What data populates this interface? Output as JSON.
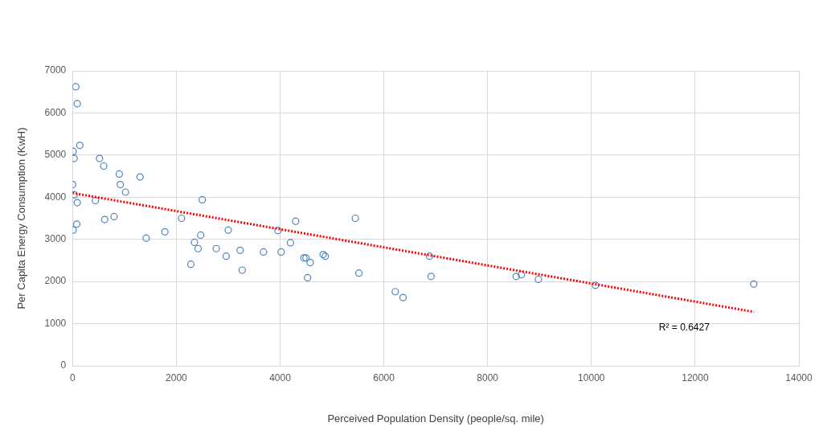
{
  "chart_data": {
    "type": "scatter",
    "x_label": "Perceived Population Density (people/sq. mile)",
    "y_label": "Per Capita Energy Consumption (KwH)",
    "annotation": "R² = 0.6427",
    "xlim": [
      0,
      14000
    ],
    "xticks": [
      0,
      2000,
      4000,
      6000,
      8000,
      10000,
      12000,
      14000
    ],
    "ylim": [
      0,
      7000
    ],
    "yticks": [
      0,
      1000,
      2000,
      3000,
      4000,
      5000,
      6000,
      7000
    ],
    "grid": true,
    "series": [
      {
        "type": "scatter",
        "marker": "circle",
        "color": "#4f81bd",
        "x": [
          62,
          90,
          140,
          10,
          30,
          520,
          600,
          900,
          1300,
          0,
          920,
          1020,
          30,
          440,
          90,
          2500,
          800,
          620,
          2100,
          80,
          10,
          1780,
          1420,
          2470,
          2350,
          2420,
          2770,
          3000,
          2960,
          3230,
          2280,
          3270,
          3680,
          3960,
          4020,
          4200,
          4300,
          4460,
          4500,
          4580,
          4530,
          4830,
          4870,
          5450,
          5520,
          6220,
          6370,
          6880,
          6910,
          8550,
          8650,
          8980,
          10080,
          13130
        ],
        "values": [
          6620,
          6220,
          5230,
          5090,
          4920,
          4920,
          4740,
          4550,
          4480,
          4300,
          4300,
          4120,
          4060,
          3920,
          3870,
          3940,
          3540,
          3470,
          3500,
          3360,
          3220,
          3180,
          3030,
          3100,
          2930,
          2780,
          2780,
          3220,
          2600,
          2740,
          2410,
          2270,
          2700,
          3210,
          2700,
          2920,
          3430,
          2560,
          2560,
          2450,
          2090,
          2640,
          2600,
          3500,
          2200,
          1760,
          1620,
          2600,
          2120,
          2120,
          2160,
          2050,
          1910,
          1940
        ]
      },
      {
        "type": "line",
        "line_style": "dotted",
        "color": "#ff0000",
        "x": [
          0,
          13130
        ],
        "values": [
          4100,
          1280
        ]
      }
    ]
  }
}
